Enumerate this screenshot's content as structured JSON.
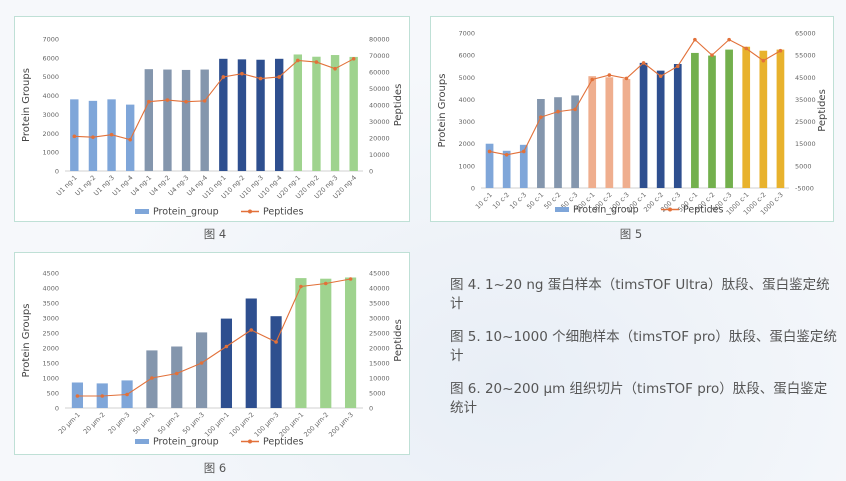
{
  "chart_data": [
    {
      "type": "bar",
      "categories": [
        "U1 ng-1",
        "U1 ng-2",
        "U1 ng-3",
        "U1 ng-4",
        "U4 ng-1",
        "U4 ng-2",
        "U4 ng-3",
        "U4 ng-4",
        "U10 ng-1",
        "U10 ng-2",
        "U10 ng-3",
        "U10 ng-4",
        "U20 ng-1",
        "U20 ng-2",
        "U20 ng-3",
        "U20 ng-4"
      ],
      "series": [
        {
          "name": "Protein_group",
          "kind": "bar",
          "axis": "left",
          "values": [
            3800,
            3720,
            3800,
            3520,
            5400,
            5380,
            5360,
            5380,
            5950,
            5920,
            5900,
            5950,
            6180,
            6060,
            6150,
            6050
          ]
        },
        {
          "name": "Peptides",
          "kind": "line",
          "axis": "right",
          "values": [
            21000,
            20500,
            22000,
            19000,
            42000,
            43000,
            42000,
            42500,
            57000,
            59000,
            56000,
            57000,
            67000,
            66000,
            62000,
            68000
          ]
        }
      ],
      "bar_colors": [
        "#7fa6d9",
        "#7fa6d9",
        "#7fa6d9",
        "#7fa6d9",
        "#8496ad",
        "#8496ad",
        "#8496ad",
        "#8496ad",
        "#2e4f8f",
        "#2e4f8f",
        "#2e4f8f",
        "#2e4f8f",
        "#9fd38e",
        "#9fd38e",
        "#9fd38e",
        "#9fd38e"
      ],
      "ylabel": "Protein Groups",
      "y2label": "Peptides",
      "ylim": [
        0,
        7000
      ],
      "y2lim": [
        0,
        80000
      ],
      "yticks": [
        0,
        1000,
        2000,
        3000,
        4000,
        5000,
        6000,
        7000
      ],
      "y2ticks": [
        0,
        10000,
        20000,
        30000,
        40000,
        50000,
        60000,
        70000,
        80000
      ],
      "legend": [
        "Protein_group",
        "Peptides"
      ],
      "caption": "图 4"
    },
    {
      "type": "bar",
      "categories": [
        "10 c-1",
        "10 c-2",
        "10 c-3",
        "50 c-1",
        "50 c-2",
        "50 c-3",
        "100 c-1",
        "100 c-2",
        "100 c-3",
        "200 c-1",
        "200 c-2",
        "200 c-3",
        "500 c-1",
        "500 c-2",
        "500 c-3",
        "1000 c-1",
        "1000 c-2",
        "1000 c-3"
      ],
      "series": [
        {
          "name": "Protein_group",
          "kind": "bar",
          "axis": "left",
          "values": [
            2000,
            1680,
            1950,
            4020,
            4100,
            4180,
            5050,
            5000,
            4920,
            5650,
            5300,
            5600,
            6100,
            5980,
            6250,
            6380,
            6200,
            6250
          ]
        },
        {
          "name": "Peptides",
          "kind": "line",
          "axis": "right",
          "values": [
            11500,
            10000,
            11500,
            27000,
            29500,
            30500,
            44000,
            46000,
            44500,
            51500,
            45500,
            50000,
            62000,
            55000,
            62000,
            58000,
            52500,
            57000
          ]
        }
      ],
      "bar_colors": [
        "#7fa6d9",
        "#7fa6d9",
        "#7fa6d9",
        "#8496ad",
        "#8496ad",
        "#8496ad",
        "#efae8e",
        "#efae8e",
        "#efae8e",
        "#2e4f8f",
        "#2e4f8f",
        "#2e4f8f",
        "#73b04d",
        "#73b04d",
        "#73b04d",
        "#e8b22d",
        "#e8b22d",
        "#e8b22d"
      ],
      "ylabel": "Protein Groups",
      "y2label": "Peptides",
      "ylim": [
        0,
        7000
      ],
      "y2lim": [
        -5000,
        65000
      ],
      "yticks": [
        0,
        1000,
        2000,
        3000,
        4000,
        5000,
        6000,
        7000
      ],
      "y2ticks": [
        -5000,
        5000,
        15000,
        25000,
        35000,
        45000,
        55000,
        65000
      ],
      "legend": [
        "Protein_group",
        "Peptides"
      ],
      "caption": "图 5"
    },
    {
      "type": "bar",
      "categories": [
        "20 μm-1",
        "20 μm-2",
        "20 μm-3",
        "50 μm-1",
        "50 μm-2",
        "50 μm-3",
        "100 μm-1",
        "100 μm-2",
        "100 μm-3",
        "200 μm-1",
        "200 μm-2",
        "200 μm-3"
      ],
      "series": [
        {
          "name": "Protein_group",
          "kind": "bar",
          "axis": "left",
          "values": [
            850,
            820,
            920,
            1920,
            2050,
            2520,
            2980,
            3650,
            3060,
            4330,
            4310,
            4350
          ]
        },
        {
          "name": "Peptides",
          "kind": "line",
          "axis": "right",
          "values": [
            4000,
            4000,
            4500,
            10000,
            11500,
            15000,
            20500,
            26000,
            22000,
            40500,
            41500,
            43000
          ]
        }
      ],
      "bar_colors": [
        "#7fa6d9",
        "#7fa6d9",
        "#7fa6d9",
        "#8496ad",
        "#8496ad",
        "#8496ad",
        "#2e4f8f",
        "#2e4f8f",
        "#2e4f8f",
        "#9fd38e",
        "#9fd38e",
        "#9fd38e"
      ],
      "ylabel": "Protein Groups",
      "y2label": "Peptides",
      "ylim": [
        0,
        4500
      ],
      "y2lim": [
        0,
        45000
      ],
      "yticks": [
        0,
        500,
        1000,
        1500,
        2000,
        2500,
        3000,
        3500,
        4000,
        4500
      ],
      "y2ticks": [
        0,
        5000,
        10000,
        15000,
        20000,
        25000,
        30000,
        35000,
        40000,
        45000
      ],
      "legend": [
        "Protein_group",
        "Peptides"
      ],
      "caption": "图 6"
    }
  ],
  "notes": [
    "图 4. 1~20 ng 蛋白样本（timsTOF Ultra）肽段、蛋白鉴定统计",
    "图 5. 10~1000 个细胞样本（timsTOF pro）肽段、蛋白鉴定统计",
    "图 6. 20~200 μm 组织切片（timsTOF pro）肽段、蛋白鉴定统计"
  ],
  "colors": {
    "line": "#e2713a",
    "legend_bar": "#7fa6d9",
    "panel_border": "#bfe0d6"
  }
}
